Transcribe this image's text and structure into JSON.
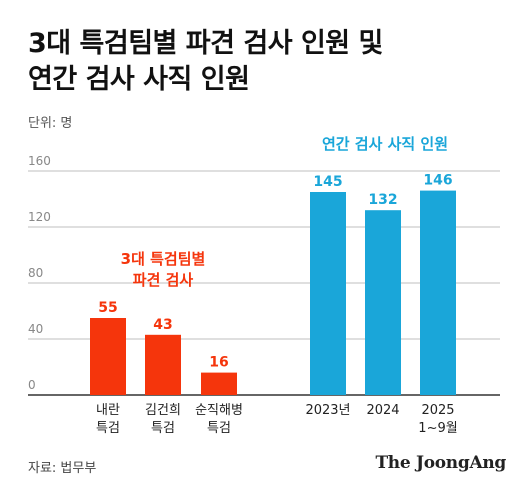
{
  "title_lines": [
    "3대 특검팀별 파견 검사 인원 및",
    "연간 검사 사직 인원"
  ],
  "unit_label": "단위: 명",
  "source": "자료: 법무부",
  "logo_text": "The JoongAng",
  "colors": {
    "special": "#f5350c",
    "annual": "#1aa6d9",
    "grid": "#bfbfbf",
    "axis": "#333333"
  },
  "chart_data": [
    {
      "type": "bar",
      "title": "3대 특검팀별 파견 검사",
      "title_lines": [
        "3대 특검팀별",
        "파견 검사"
      ],
      "categories": [
        "내란 특검",
        "김건희 특검",
        "순직해병 특검"
      ],
      "category_lines": [
        [
          "내란",
          "특검"
        ],
        [
          "김건희",
          "특검"
        ],
        [
          "순직해병",
          "특검"
        ]
      ],
      "values": [
        55,
        43,
        16
      ],
      "color": "#f5350c",
      "yticks": [
        0,
        40,
        80,
        120,
        160
      ],
      "ylim": [
        0,
        160
      ]
    },
    {
      "type": "bar",
      "title": "연간 검사 사직 인원",
      "categories": [
        "2023년",
        "2024",
        "2025 1~9월"
      ],
      "category_lines": [
        [
          "2023년"
        ],
        [
          "2024"
        ],
        [
          "2025",
          "1~9월"
        ]
      ],
      "values": [
        145,
        132,
        146
      ],
      "color": "#1aa6d9",
      "ylim": [
        0,
        160
      ]
    }
  ]
}
